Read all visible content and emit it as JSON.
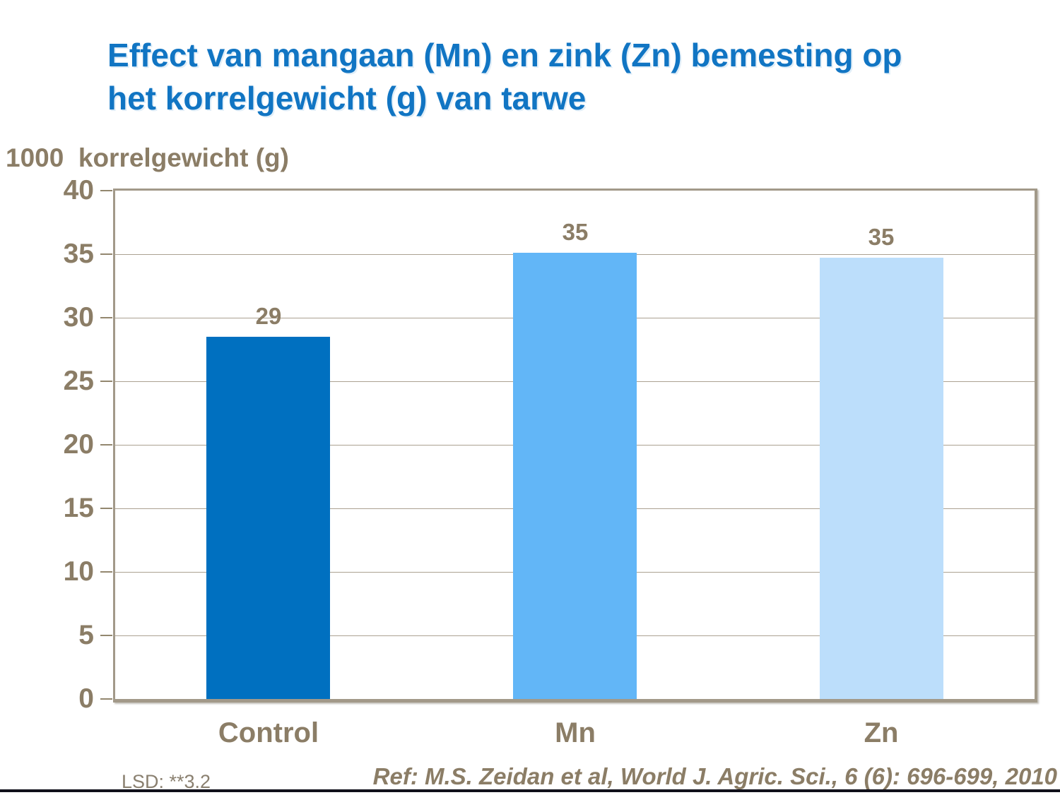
{
  "title": {
    "line1": "Effect van mangaan (Mn) en zink (Zn) bemesting op",
    "line2": "het korrelgewicht (g) van tarwe"
  },
  "axis_title": "1000  korrelgewicht (g)",
  "chart_data": {
    "type": "bar",
    "title": "Effect van mangaan (Mn) en zink (Zn) bemesting op het korrelgewicht (g) van tarwe",
    "ylabel": "1000 korrelgewicht (g)",
    "xlabel": "",
    "categories": [
      "Control",
      "Mn",
      "Zn"
    ],
    "values": [
      29,
      35,
      35
    ],
    "bar_labels": [
      "29",
      "35",
      "35"
    ],
    "bar_heights_units": [
      28.5,
      35.1,
      34.7
    ],
    "bar_colors": [
      "#0070C0",
      "#62B6F7",
      "#BCDEFB"
    ],
    "ylim": [
      0,
      40
    ],
    "yticks": [
      0,
      5,
      10,
      15,
      20,
      25,
      30,
      35,
      40
    ],
    "grid": true,
    "legend_position": "none"
  },
  "footer": {
    "lsd": "LSD: **3.2",
    "ref": "Ref: M.S. Zeidan et al, World J. Agric. Sci., 6 (6): 696-699, 2010"
  },
  "colors": {
    "title_blue": "#1175C3",
    "text_brown": "#8B7D66",
    "lsd_gray": "#8A8070",
    "grid": "#ABA191",
    "frame": "#A29989",
    "tick": "#93876F",
    "footer_rule": "#10101A"
  }
}
